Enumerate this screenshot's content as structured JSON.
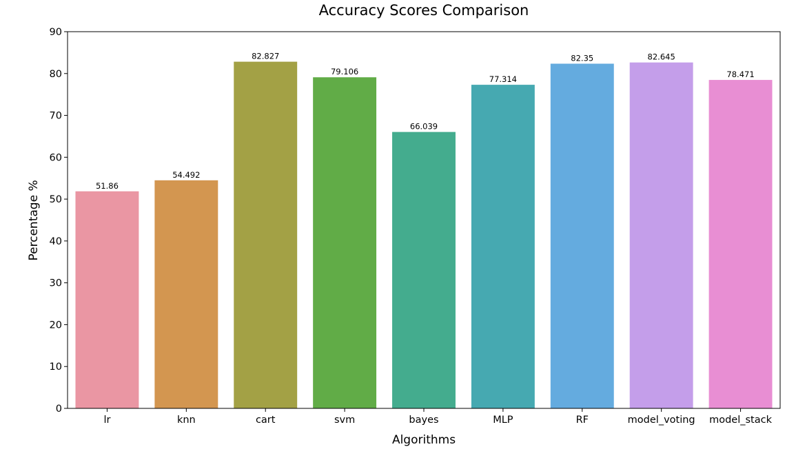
{
  "chart_data": {
    "type": "bar",
    "title": "Accuracy Scores Comparison",
    "xlabel": "Algorithms",
    "ylabel": "Percentage %",
    "ylim": [
      0,
      90
    ],
    "yticks": [
      0,
      10,
      20,
      30,
      40,
      50,
      60,
      70,
      80,
      90
    ],
    "grid": false,
    "categories": [
      "lr",
      "knn",
      "cart",
      "svm",
      "bayes",
      "MLP",
      "RF",
      "model_voting",
      "model_stack"
    ],
    "values": [
      51.86,
      54.492,
      82.827,
      79.106,
      66.039,
      77.314,
      82.35,
      82.645,
      78.471
    ],
    "data_labels": [
      "51.86",
      "54.492",
      "82.827",
      "79.106",
      "66.039",
      "77.314",
      "82.35",
      "82.645",
      "78.471"
    ],
    "colors": [
      "#ea96a3",
      "#d39650",
      "#a3a145",
      "#61ac47",
      "#44ac8e",
      "#46a9b1",
      "#64abdf",
      "#c49eea",
      "#e88ed3"
    ]
  }
}
